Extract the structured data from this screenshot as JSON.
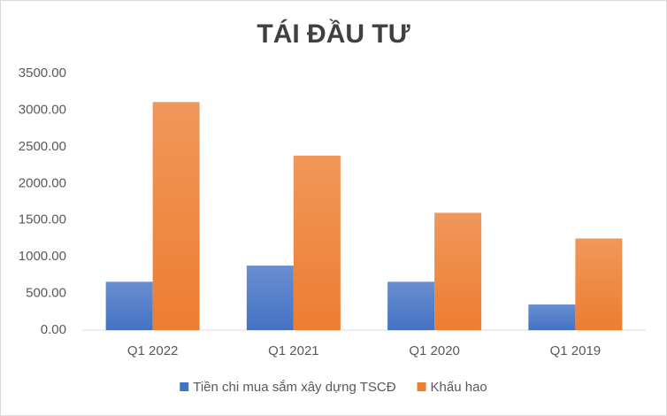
{
  "chart_data": {
    "type": "bar",
    "title": "TÁI ĐẦU TƯ",
    "categories": [
      "Q1 2022",
      "Q1 2021",
      "Q1 2020",
      "Q1 2019"
    ],
    "series": [
      {
        "name": "Tiền chi mua sắm xây dựng TSCĐ",
        "color": "#4472c4",
        "values": [
          660,
          880,
          660,
          350
        ]
      },
      {
        "name": "Khấu hao",
        "color": "#ed7d31",
        "values": [
          3110,
          2380,
          1600,
          1250
        ]
      }
    ],
    "ylim": [
      0,
      3500
    ],
    "yticks": [
      {
        "value": 0,
        "label": "0.00"
      },
      {
        "value": 500,
        "label": "500.00"
      },
      {
        "value": 1000,
        "label": "1000.00"
      },
      {
        "value": 1500,
        "label": "1500.00"
      },
      {
        "value": 2000,
        "label": "2000.00"
      },
      {
        "value": 2500,
        "label": "2500.00"
      },
      {
        "value": 3000,
        "label": "3000.00"
      },
      {
        "value": 3500,
        "label": "3500.00"
      }
    ],
    "grid": false,
    "legend": "bottom"
  }
}
